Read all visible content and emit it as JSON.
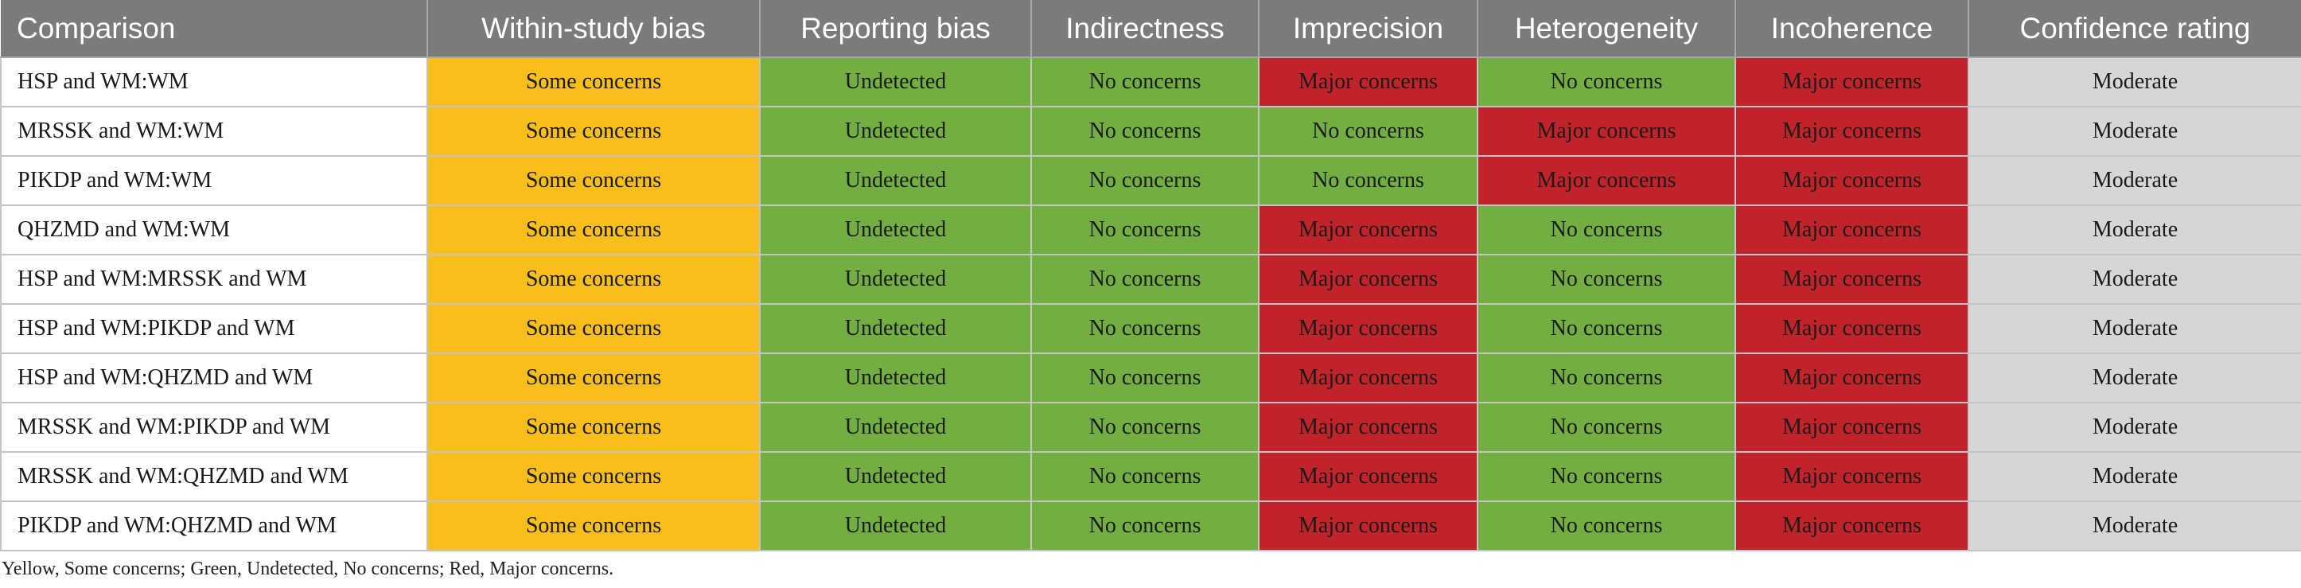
{
  "table": {
    "columns": [
      "Comparison",
      "Within-study bias",
      "Reporting bias",
      "Indirectness",
      "Imprecision",
      "Heterogeneity",
      "Incoherence",
      "Confidence rating"
    ],
    "colors": {
      "yellow": "#f8bf1a",
      "green": "#73ae43",
      "red": "#c0242a",
      "grey": "#d6d6d6",
      "header": "#7b7b7b"
    },
    "rows": [
      {
        "cells": [
          "HSP and WM:WM",
          "Some concerns",
          "Undetected",
          "No concerns",
          "Major concerns",
          "No concerns",
          "Major concerns",
          "Moderate"
        ],
        "colors": [
          "white",
          "yellow",
          "green",
          "green",
          "red",
          "green",
          "red",
          "grey"
        ]
      },
      {
        "cells": [
          "MRSSK and WM:WM",
          "Some concerns",
          "Undetected",
          "No concerns",
          "No concerns",
          "Major concerns",
          "Major concerns",
          "Moderate"
        ],
        "colors": [
          "white",
          "yellow",
          "green",
          "green",
          "green",
          "red",
          "red",
          "grey"
        ]
      },
      {
        "cells": [
          "PIKDP and WM:WM",
          "Some concerns",
          "Undetected",
          "No concerns",
          "No concerns",
          "Major concerns",
          "Major concerns",
          "Moderate"
        ],
        "colors": [
          "white",
          "yellow",
          "green",
          "green",
          "green",
          "red",
          "red",
          "grey"
        ]
      },
      {
        "cells": [
          "QHZMD and WM:WM",
          "Some concerns",
          "Undetected",
          "No concerns",
          "Major concerns",
          "No concerns",
          "Major concerns",
          "Moderate"
        ],
        "colors": [
          "white",
          "yellow",
          "green",
          "green",
          "red",
          "green",
          "red",
          "grey"
        ]
      },
      {
        "cells": [
          "HSP and WM:MRSSK and WM",
          "Some concerns",
          "Undetected",
          "No concerns",
          "Major concerns",
          "No concerns",
          "Major concerns",
          "Moderate"
        ],
        "colors": [
          "white",
          "yellow",
          "green",
          "green",
          "red",
          "green",
          "red",
          "grey"
        ]
      },
      {
        "cells": [
          "HSP and WM:PIKDP and WM",
          "Some concerns",
          "Undetected",
          "No concerns",
          "Major concerns",
          "No concerns",
          "Major concerns",
          "Moderate"
        ],
        "colors": [
          "white",
          "yellow",
          "green",
          "green",
          "red",
          "green",
          "red",
          "grey"
        ]
      },
      {
        "cells": [
          "HSP and WM:QHZMD and WM",
          "Some concerns",
          "Undetected",
          "No concerns",
          "Major concerns",
          "No concerns",
          "Major concerns",
          "Moderate"
        ],
        "colors": [
          "white",
          "yellow",
          "green",
          "green",
          "red",
          "green",
          "red",
          "grey"
        ]
      },
      {
        "cells": [
          "MRSSK and WM:PIKDP and WM",
          "Some concerns",
          "Undetected",
          "No concerns",
          "Major concerns",
          "No concerns",
          "Major concerns",
          "Moderate"
        ],
        "colors": [
          "white",
          "yellow",
          "green",
          "green",
          "red",
          "green",
          "red",
          "grey"
        ]
      },
      {
        "cells": [
          "MRSSK and WM:QHZMD and WM",
          "Some concerns",
          "Undetected",
          "No concerns",
          "Major concerns",
          "No concerns",
          "Major concerns",
          "Moderate"
        ],
        "colors": [
          "white",
          "yellow",
          "green",
          "green",
          "red",
          "green",
          "red",
          "grey"
        ]
      },
      {
        "cells": [
          "PIKDP and WM:QHZMD and WM",
          "Some concerns",
          "Undetected",
          "No concerns",
          "Major concerns",
          "No concerns",
          "Major concerns",
          "Moderate"
        ],
        "colors": [
          "white",
          "yellow",
          "green",
          "green",
          "red",
          "green",
          "red",
          "grey"
        ]
      }
    ]
  },
  "footnote": "Yellow, Some concerns; Green, Undetected, No concerns; Red, Major concerns."
}
